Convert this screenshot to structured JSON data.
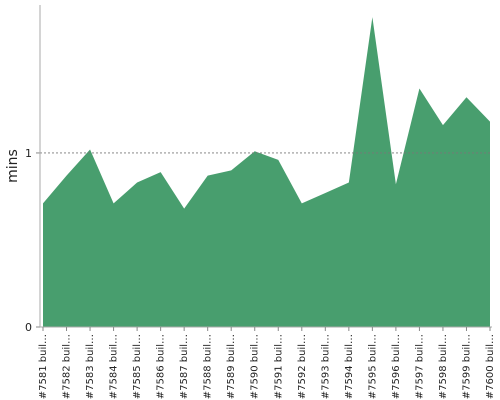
{
  "chart_data": {
    "type": "area",
    "y_label": "mins",
    "categories": [
      "#7581 buil…",
      "#7582 buil…",
      "#7583 buil…",
      "#7584 buil…",
      "#7585 buil…",
      "#7586 buil…",
      "#7587 buil…",
      "#7588 buil…",
      "#7589 buil…",
      "#7590 buil…",
      "#7591 buil…",
      "#7592 buil…",
      "#7593 buil…",
      "#7594 buil…",
      "#7595 buil…",
      "#7596 buil…",
      "#7597 buil…",
      "#7598 buil…",
      "#7599 buil…",
      "#7600 buil…"
    ],
    "values": [
      0.71,
      0.87,
      1.02,
      0.71,
      0.83,
      0.89,
      0.68,
      0.87,
      0.9,
      1.01,
      0.96,
      0.71,
      0.77,
      0.83,
      1.78,
      0.82,
      1.37,
      1.16,
      1.32,
      1.18
    ],
    "color": "#489e6e",
    "ylim": [
      0,
      1.85
    ],
    "yticks": [
      0,
      1
    ],
    "grid": true
  }
}
